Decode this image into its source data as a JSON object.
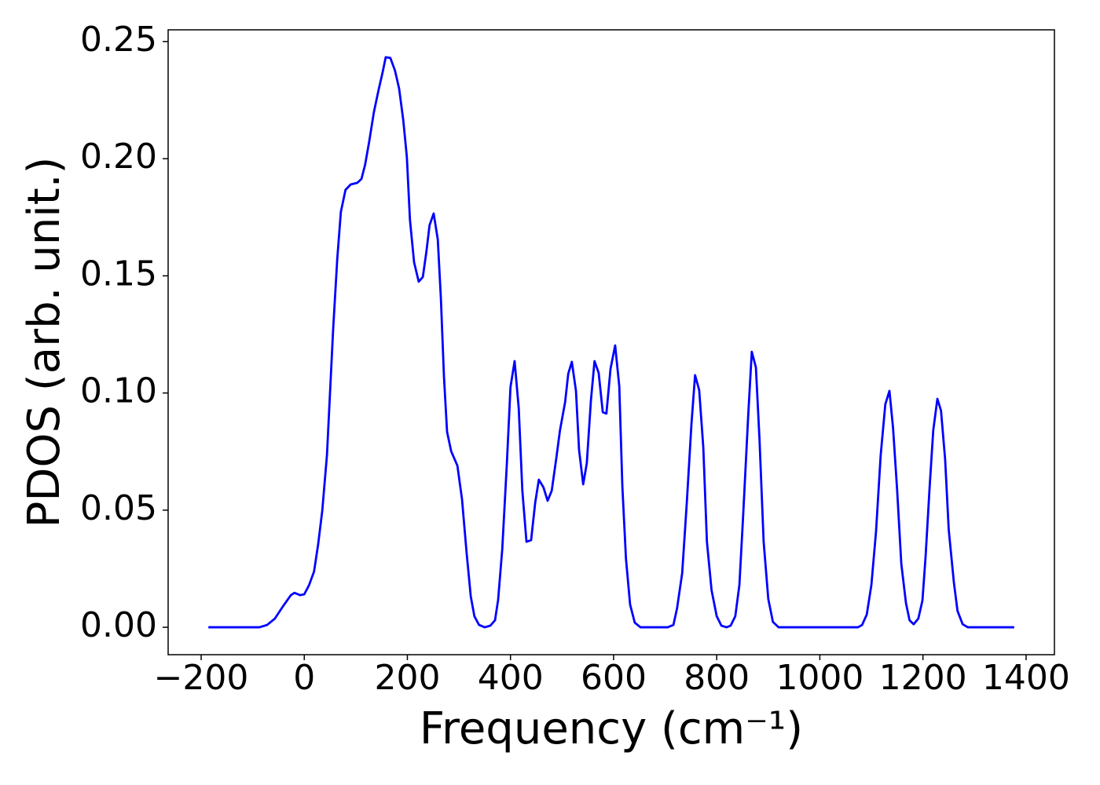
{
  "chart_data": {
    "type": "line",
    "xlabel": "Frequency (cm⁻¹)",
    "ylabel": "PDOS (arb. unit.)",
    "color": "#0000ff",
    "xlim": [
      -264,
      1455
    ],
    "ylim": [
      -0.0117,
      0.255
    ],
    "xticks": [
      {
        "value": -200,
        "label": "−200"
      },
      0,
      200,
      400,
      600,
      800,
      1000,
      1200,
      1400
    ],
    "yticks": [
      {
        "value": 0,
        "label": "0.00"
      },
      {
        "value": 0.05,
        "label": "0.05"
      },
      {
        "value": 0.1,
        "label": "0.10"
      },
      {
        "value": 0.15,
        "label": "0.15"
      },
      {
        "value": 0.2,
        "label": "0.20"
      },
      {
        "value": 0.25,
        "label": "0.25"
      }
    ],
    "x": [
      -186,
      -87,
      -72,
      -57,
      -42,
      -26,
      -19,
      -8,
      0,
      9,
      19,
      27,
      35,
      44,
      56,
      64,
      71,
      80,
      90,
      103,
      111,
      118,
      126,
      135,
      144,
      152,
      158,
      167,
      176,
      184,
      192,
      199,
      205,
      213,
      222,
      230,
      237,
      243,
      251,
      259,
      265,
      271,
      277,
      285,
      297,
      306,
      315,
      323,
      330,
      339,
      350,
      361,
      370,
      376,
      384,
      393,
      400,
      408,
      416,
      423,
      431,
      440,
      448,
      455,
      464,
      472,
      480,
      489,
      496,
      506,
      512,
      519,
      527,
      533,
      541,
      548,
      556,
      563,
      571,
      579,
      586,
      594,
      603,
      611,
      617,
      624,
      632,
      641,
      652,
      705,
      716,
      723,
      733,
      742,
      751,
      758,
      766,
      774,
      781,
      790,
      800,
      809,
      819,
      827,
      836,
      844,
      851,
      861,
      868,
      876,
      883,
      891,
      900,
      909,
      920,
      1074,
      1082,
      1091,
      1100,
      1109,
      1118,
      1127,
      1135,
      1142,
      1150,
      1158,
      1167,
      1174,
      1182,
      1191,
      1199,
      1205,
      1213,
      1220,
      1228,
      1235,
      1243,
      1250,
      1260,
      1267,
      1277,
      1287,
      1377
    ],
    "values": [
      0,
      0,
      0.001,
      0.0037,
      0.0087,
      0.0137,
      0.0147,
      0.0137,
      0.0141,
      0.0178,
      0.0238,
      0.0355,
      0.0499,
      0.0734,
      0.127,
      0.1572,
      0.1773,
      0.1867,
      0.189,
      0.1897,
      0.1914,
      0.1974,
      0.2074,
      0.2198,
      0.2292,
      0.2369,
      0.2433,
      0.243,
      0.2376,
      0.2299,
      0.2165,
      0.2007,
      0.1739,
      0.1558,
      0.1475,
      0.1495,
      0.1605,
      0.1716,
      0.1766,
      0.1655,
      0.1404,
      0.1069,
      0.0834,
      0.0751,
      0.069,
      0.0546,
      0.0315,
      0.0131,
      0.0047,
      0.001,
      0,
      0.0007,
      0.003,
      0.0117,
      0.0332,
      0.07,
      0.1025,
      0.1136,
      0.0935,
      0.0583,
      0.0365,
      0.0372,
      0.0533,
      0.063,
      0.0597,
      0.054,
      0.0583,
      0.0724,
      0.0841,
      0.0962,
      0.1082,
      0.1133,
      0.1009,
      0.0757,
      0.061,
      0.07,
      0.0968,
      0.1136,
      0.1086,
      0.0918,
      0.0912,
      0.1103,
      0.1203,
      0.1029,
      0.06,
      0.0292,
      0.0097,
      0.002,
      0,
      0,
      0.001,
      0.008,
      0.0231,
      0.0533,
      0.0868,
      0.1076,
      0.1012,
      0.0767,
      0.0365,
      0.0158,
      0.0047,
      0.0007,
      0,
      0.0007,
      0.0047,
      0.0181,
      0.0466,
      0.0901,
      0.1176,
      0.1109,
      0.0801,
      0.0365,
      0.0121,
      0.0023,
      0,
      0,
      0.001,
      0.0054,
      0.0181,
      0.0409,
      0.0734,
      0.0952,
      0.1009,
      0.0851,
      0.0583,
      0.0271,
      0.0104,
      0.003,
      0.0013,
      0.0037,
      0.0114,
      0.0298,
      0.06,
      0.0841,
      0.0975,
      0.0925,
      0.0717,
      0.0416,
      0.0191,
      0.007,
      0.0013,
      0,
      0
    ]
  }
}
